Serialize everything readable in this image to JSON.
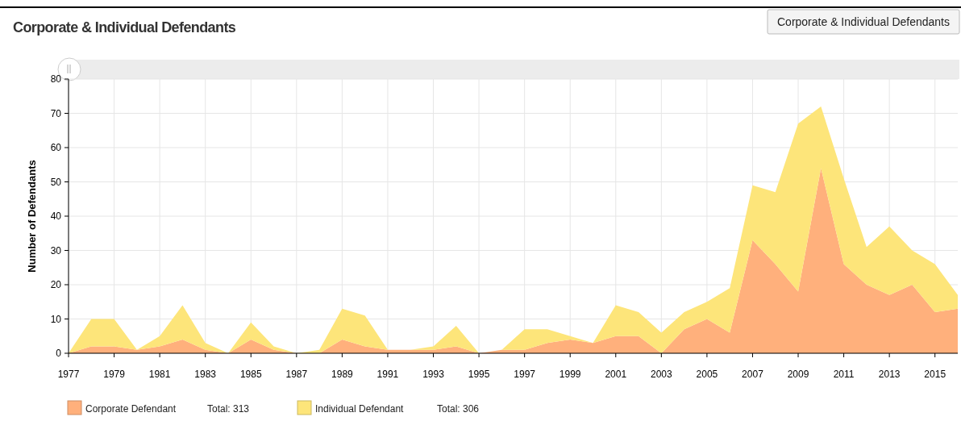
{
  "chart_data": {
    "type": "area",
    "stacked": true,
    "title": "Corporate & Individual Defendants",
    "ylabel": "Number of Defendants",
    "x": [
      1977,
      1978,
      1979,
      1980,
      1981,
      1982,
      1983,
      1984,
      1985,
      1986,
      1987,
      1988,
      1989,
      1990,
      1991,
      1992,
      1993,
      1994,
      1995,
      1996,
      1997,
      1998,
      1999,
      2000,
      2001,
      2002,
      2003,
      2004,
      2005,
      2006,
      2007,
      2008,
      2009,
      2010,
      2011,
      2012,
      2013,
      2014,
      2015,
      2016
    ],
    "series": [
      {
        "name": "Corporate Defendant",
        "color": "#ffb07c",
        "values": [
          0,
          2,
          2,
          1,
          2,
          4,
          1,
          0,
          4,
          1,
          0,
          0,
          4,
          2,
          1,
          1,
          1,
          2,
          0,
          1,
          1,
          3,
          4,
          3,
          5,
          5,
          0,
          7,
          10,
          6,
          33,
          26,
          18,
          54,
          26,
          20,
          17,
          20,
          12,
          13
        ]
      },
      {
        "name": "Individual Defendant",
        "color": "#fde57a",
        "values": [
          0,
          8,
          8,
          0,
          3,
          10,
          2,
          0,
          5,
          1,
          0,
          1,
          9,
          9,
          0,
          0,
          1,
          6,
          0,
          0,
          6,
          4,
          1,
          0,
          9,
          7,
          6,
          5,
          5,
          13,
          16,
          21,
          49,
          18,
          25,
          11,
          20,
          10,
          14,
          4
        ]
      }
    ],
    "xlim": [
      1977,
      2016
    ],
    "xticks": [
      1977,
      1979,
      1981,
      1983,
      1985,
      1987,
      1989,
      1991,
      1993,
      1995,
      1997,
      1999,
      2001,
      2003,
      2005,
      2007,
      2009,
      2011,
      2013,
      2015
    ],
    "ylim": [
      0,
      80
    ],
    "yticks": [
      0,
      10,
      20,
      30,
      40,
      50,
      60,
      70,
      80
    ],
    "grid": true,
    "legend": "bottom left",
    "annotations": [
      "Total: 313",
      "Total: 306",
      "Corporate & Individual Defendants"
    ]
  }
}
